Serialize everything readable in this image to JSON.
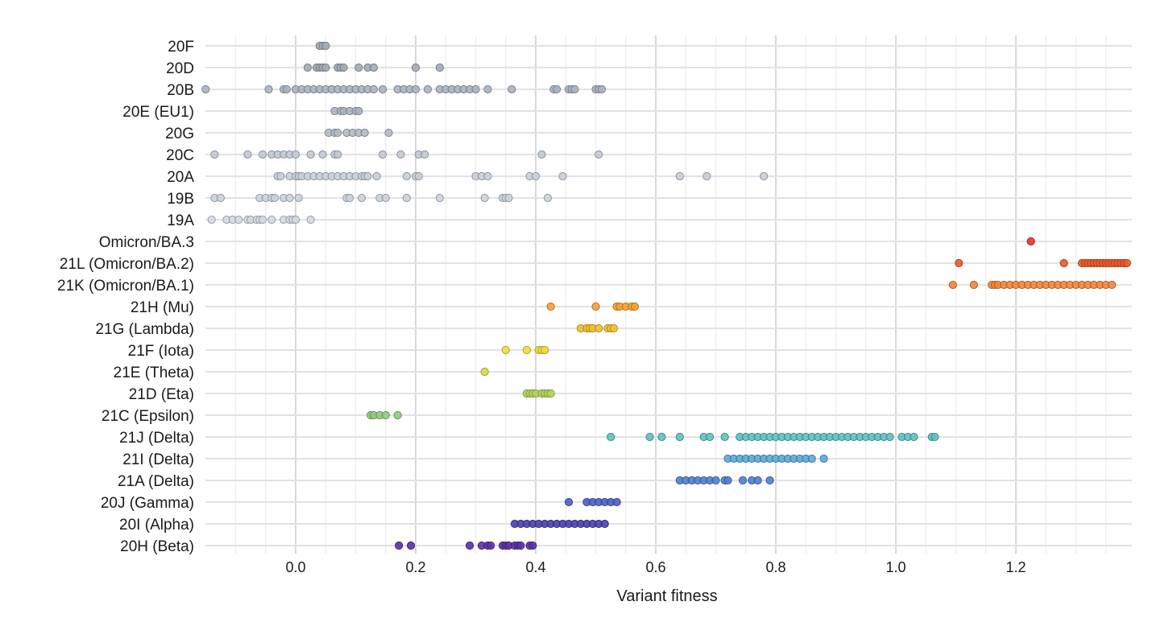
{
  "chart_data": {
    "type": "scatter",
    "xlabel": "Variant fitness",
    "xlim": [
      -0.15,
      1.39
    ],
    "xticks": [
      0.0,
      0.2,
      0.4,
      0.6,
      0.8,
      1.0,
      1.2
    ],
    "xtick_labels": [
      "0.0",
      "0.2",
      "0.4",
      "0.6",
      "0.8",
      "1.0",
      "1.2"
    ],
    "categories": [
      "20F",
      "20D",
      "20B",
      "20E (EU1)",
      "20G",
      "20C",
      "20A",
      "19B",
      "19A",
      "Omicron/BA.3",
      "21L (Omicron/BA.2)",
      "21K (Omicron/BA.1)",
      "21H (Mu)",
      "21G (Lambda)",
      "21F (Iota)",
      "21E (Theta)",
      "21D (Eta)",
      "21C (Epsilon)",
      "21J (Delta)",
      "21I (Delta)",
      "21A (Delta)",
      "20J (Gamma)",
      "20I (Alpha)",
      "20H (Beta)"
    ],
    "grid": true,
    "series": [
      {
        "category": "20F",
        "color": "#a3abb6",
        "x": [
          0.04,
          0.045,
          0.05
        ]
      },
      {
        "category": "20D",
        "color": "#a3abb6",
        "x": [
          0.02,
          0.035,
          0.04,
          0.045,
          0.05,
          0.07,
          0.075,
          0.08,
          0.105,
          0.12,
          0.13,
          0.2,
          0.24
        ]
      },
      {
        "category": "20B",
        "color": "#aab3c1",
        "x": [
          -0.15,
          -0.045,
          -0.02,
          -0.015,
          0.0,
          0.01,
          0.02,
          0.03,
          0.04,
          0.05,
          0.06,
          0.07,
          0.08,
          0.09,
          0.1,
          0.11,
          0.12,
          0.13,
          0.145,
          0.17,
          0.18,
          0.19,
          0.2,
          0.22,
          0.24,
          0.25,
          0.26,
          0.27,
          0.28,
          0.29,
          0.3,
          0.32,
          0.36,
          0.43,
          0.435,
          0.455,
          0.46,
          0.465,
          0.5,
          0.505,
          0.51
        ]
      },
      {
        "category": "20E (EU1)",
        "color": "#abb4c2",
        "x": [
          0.065,
          0.075,
          0.08,
          0.09,
          0.1,
          0.105
        ]
      },
      {
        "category": "20G",
        "color": "#b2bac7",
        "x": [
          0.055,
          0.065,
          0.07,
          0.085,
          0.095,
          0.105,
          0.115,
          0.155
        ]
      },
      {
        "category": "20C",
        "color": "#c2c9d4",
        "x": [
          -0.135,
          -0.08,
          -0.055,
          -0.04,
          -0.03,
          -0.02,
          -0.01,
          0.0,
          0.025,
          0.045,
          0.065,
          0.07,
          0.145,
          0.175,
          0.205,
          0.215,
          0.41,
          0.505
        ]
      },
      {
        "category": "20A",
        "color": "#c8cfd9",
        "x": [
          -0.03,
          -0.025,
          -0.01,
          0.0,
          0.005,
          0.01,
          0.02,
          0.03,
          0.04,
          0.05,
          0.06,
          0.07,
          0.08,
          0.09,
          0.1,
          0.11,
          0.115,
          0.12,
          0.135,
          0.185,
          0.2,
          0.205,
          0.3,
          0.31,
          0.32,
          0.39,
          0.4,
          0.445,
          0.64,
          0.685,
          0.78
        ]
      },
      {
        "category": "19B",
        "color": "#ccd3dc",
        "x": [
          -0.135,
          -0.125,
          -0.06,
          -0.05,
          -0.04,
          -0.035,
          -0.02,
          -0.01,
          0.005,
          0.085,
          0.09,
          0.11,
          0.14,
          0.15,
          0.185,
          0.24,
          0.315,
          0.345,
          0.35,
          0.355,
          0.42
        ]
      },
      {
        "category": "19A",
        "color": "#d4dae2",
        "x": [
          -0.14,
          -0.115,
          -0.105,
          -0.095,
          -0.08,
          -0.075,
          -0.065,
          -0.06,
          -0.055,
          -0.04,
          -0.02,
          -0.01,
          -0.005,
          0.0,
          0.025
        ]
      },
      {
        "category": "Omicron/BA.3",
        "color": "#e8322a",
        "x": [
          1.225
        ]
      },
      {
        "category": "21L (Omicron/BA.2)",
        "color": "#ec5a2a",
        "x": [
          1.105,
          1.28,
          1.31,
          1.315,
          1.32,
          1.325,
          1.33,
          1.335,
          1.34,
          1.345,
          1.35,
          1.355,
          1.36,
          1.365,
          1.37,
          1.375,
          1.38,
          1.385
        ]
      },
      {
        "category": "21K (Omicron/BA.1)",
        "color": "#f4843a",
        "x": [
          1.095,
          1.13,
          1.16,
          1.165,
          1.17,
          1.18,
          1.19,
          1.2,
          1.21,
          1.22,
          1.23,
          1.24,
          1.25,
          1.26,
          1.27,
          1.28,
          1.29,
          1.3,
          1.31,
          1.32,
          1.33,
          1.34,
          1.35,
          1.36
        ]
      },
      {
        "category": "21H (Mu)",
        "color": "#f5a12f",
        "x": [
          0.425,
          0.5,
          0.535,
          0.54,
          0.55,
          0.56,
          0.565
        ]
      },
      {
        "category": "21G (Lambda)",
        "color": "#f3c12e",
        "x": [
          0.475,
          0.485,
          0.49,
          0.495,
          0.505,
          0.52,
          0.525,
          0.53
        ]
      },
      {
        "category": "21F (Iota)",
        "color": "#f2dd35",
        "x": [
          0.35,
          0.385,
          0.405,
          0.41,
          0.415
        ]
      },
      {
        "category": "21E (Theta)",
        "color": "#d3dc47",
        "x": [
          0.315
        ]
      },
      {
        "category": "21D (Eta)",
        "color": "#b3d45d",
        "x": [
          0.385,
          0.39,
          0.395,
          0.4,
          0.41,
          0.415,
          0.42,
          0.425
        ]
      },
      {
        "category": "21C (Epsilon)",
        "color": "#8fcb7a",
        "x": [
          0.125,
          0.13,
          0.14,
          0.15,
          0.17
        ]
      },
      {
        "category": "21J (Delta)",
        "color": "#5fc0bf",
        "x": [
          0.525,
          0.59,
          0.61,
          0.64,
          0.68,
          0.69,
          0.715,
          0.74,
          0.75,
          0.76,
          0.77,
          0.78,
          0.79,
          0.8,
          0.81,
          0.82,
          0.83,
          0.84,
          0.85,
          0.86,
          0.87,
          0.88,
          0.89,
          0.9,
          0.91,
          0.92,
          0.93,
          0.94,
          0.95,
          0.96,
          0.97,
          0.98,
          0.99,
          1.01,
          1.02,
          1.03,
          1.06,
          1.065
        ]
      },
      {
        "category": "21I (Delta)",
        "color": "#5aa9da",
        "x": [
          0.72,
          0.73,
          0.74,
          0.75,
          0.76,
          0.77,
          0.78,
          0.79,
          0.8,
          0.81,
          0.82,
          0.83,
          0.84,
          0.85,
          0.86,
          0.88
        ]
      },
      {
        "category": "21A (Delta)",
        "color": "#4f7fd0",
        "x": [
          0.64,
          0.65,
          0.66,
          0.67,
          0.68,
          0.69,
          0.7,
          0.715,
          0.72,
          0.745,
          0.76,
          0.77,
          0.79
        ]
      },
      {
        "category": "20J (Gamma)",
        "color": "#4c5fc4",
        "x": [
          0.455,
          0.485,
          0.495,
          0.505,
          0.515,
          0.525,
          0.535
        ]
      },
      {
        "category": "20I (Alpha)",
        "color": "#4a3fae",
        "x": [
          0.365,
          0.375,
          0.385,
          0.395,
          0.405,
          0.415,
          0.425,
          0.435,
          0.445,
          0.455,
          0.465,
          0.475,
          0.485,
          0.495,
          0.505,
          0.515
        ]
      },
      {
        "category": "20H (Beta)",
        "color": "#5a31a6",
        "x": [
          0.172,
          0.192,
          0.29,
          0.31,
          0.32,
          0.325,
          0.345,
          0.35,
          0.355,
          0.365,
          0.37,
          0.375,
          0.39,
          0.395
        ]
      }
    ]
  }
}
